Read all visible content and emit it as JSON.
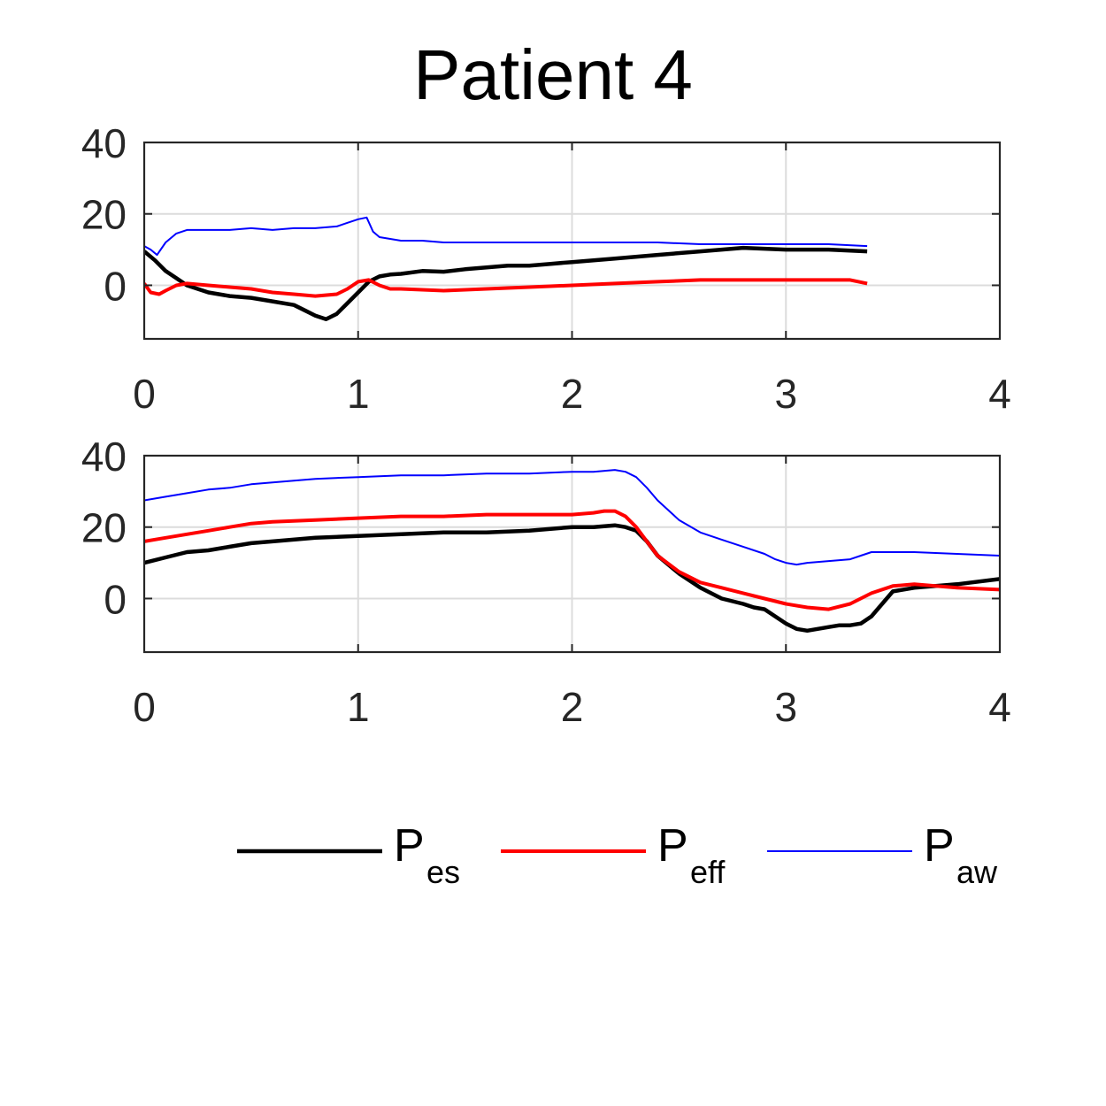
{
  "title": "Patient 4",
  "legend": [
    {
      "main": "P",
      "sub": "es",
      "color": "#000000"
    },
    {
      "main": "P",
      "sub": "eff",
      "color": "#ff0000"
    },
    {
      "main": "P",
      "sub": "aw",
      "color": "#0000ff"
    }
  ],
  "chart_data": [
    {
      "type": "line",
      "title": "",
      "xlabel": "",
      "ylabel": "",
      "xlim": [
        0,
        4
      ],
      "ylim": [
        -15,
        40
      ],
      "xticks": [
        0,
        1,
        2,
        3,
        4
      ],
      "yticks": [
        0,
        20,
        40
      ],
      "grid": true,
      "series": [
        {
          "color": "#000000",
          "x": [
            0,
            0.05,
            0.1,
            0.15,
            0.2,
            0.3,
            0.4,
            0.5,
            0.6,
            0.7,
            0.75,
            0.8,
            0.85,
            0.9,
            0.95,
            1.0,
            1.05,
            1.1,
            1.15,
            1.2,
            1.3,
            1.4,
            1.5,
            1.6,
            1.7,
            1.8,
            1.9,
            2.0,
            2.2,
            2.4,
            2.6,
            2.8,
            3.0,
            3.2,
            3.38
          ],
          "y": [
            9.5,
            7,
            4,
            2,
            0,
            -2,
            -3,
            -3.5,
            -4.5,
            -5.5,
            -7,
            -8.5,
            -9.5,
            -8,
            -5,
            -2,
            1,
            2.5,
            3,
            3.2,
            4,
            3.8,
            4.5,
            5,
            5.5,
            5.5,
            6,
            6.5,
            7.5,
            8.5,
            9.5,
            10.5,
            10,
            10,
            9.5
          ]
        },
        {
          "color": "#ff0000",
          "x": [
            0,
            0.03,
            0.07,
            0.1,
            0.15,
            0.2,
            0.3,
            0.4,
            0.5,
            0.6,
            0.7,
            0.8,
            0.9,
            0.95,
            1.0,
            1.05,
            1.1,
            1.15,
            1.2,
            1.4,
            1.6,
            1.8,
            2.0,
            2.2,
            2.4,
            2.6,
            2.8,
            3.0,
            3.2,
            3.3,
            3.38
          ],
          "y": [
            0.5,
            -2,
            -2.5,
            -1.5,
            0,
            0.5,
            0,
            -0.5,
            -1,
            -2,
            -2.5,
            -3,
            -2.5,
            -1,
            1,
            1.5,
            0,
            -1,
            -1,
            -1.5,
            -1,
            -0.5,
            0,
            0.5,
            1,
            1.5,
            1.5,
            1.5,
            1.5,
            1.5,
            0.5
          ]
        },
        {
          "color": "#0000ff",
          "x": [
            0,
            0.03,
            0.06,
            0.1,
            0.15,
            0.2,
            0.3,
            0.4,
            0.5,
            0.6,
            0.7,
            0.8,
            0.9,
            0.95,
            1.0,
            1.04,
            1.07,
            1.1,
            1.15,
            1.2,
            1.3,
            1.4,
            1.6,
            1.8,
            2.0,
            2.2,
            2.4,
            2.6,
            2.8,
            3.0,
            3.2,
            3.38
          ],
          "y": [
            11,
            10,
            8.5,
            12,
            14.5,
            15.5,
            15.5,
            15.5,
            16,
            15.5,
            16,
            16,
            16.5,
            17.5,
            18.5,
            19,
            15,
            13.5,
            13,
            12.5,
            12.5,
            12,
            12,
            12,
            12,
            12,
            12,
            11.5,
            11.5,
            11.5,
            11.5,
            11
          ]
        }
      ]
    },
    {
      "type": "line",
      "title": "",
      "xlabel": "",
      "ylabel": "",
      "xlim": [
        0,
        4
      ],
      "ylim": [
        -15,
        40
      ],
      "xticks": [
        0,
        1,
        2,
        3,
        4
      ],
      "yticks": [
        0,
        20,
        40
      ],
      "grid": true,
      "series": [
        {
          "color": "#000000",
          "x": [
            0,
            0.1,
            0.2,
            0.3,
            0.4,
            0.5,
            0.6,
            0.8,
            1.0,
            1.2,
            1.4,
            1.6,
            1.8,
            2.0,
            2.1,
            2.2,
            2.25,
            2.3,
            2.35,
            2.4,
            2.5,
            2.6,
            2.7,
            2.8,
            2.85,
            2.9,
            3.0,
            3.05,
            3.1,
            3.2,
            3.25,
            3.3,
            3.35,
            3.4,
            3.5,
            3.6,
            3.8,
            4.0
          ],
          "y": [
            10,
            11.5,
            13,
            13.5,
            14.5,
            15.5,
            16,
            17,
            17.5,
            18,
            18.5,
            18.5,
            19,
            20,
            20,
            20.5,
            20,
            19,
            16,
            12,
            7,
            3,
            0,
            -1.5,
            -2.5,
            -3,
            -7,
            -8.5,
            -9,
            -8,
            -7.5,
            -7.5,
            -7,
            -5,
            2,
            3,
            4,
            5.5
          ]
        },
        {
          "color": "#ff0000",
          "x": [
            0,
            0.1,
            0.2,
            0.3,
            0.4,
            0.5,
            0.6,
            0.8,
            1.0,
            1.2,
            1.4,
            1.6,
            1.8,
            2.0,
            2.1,
            2.15,
            2.2,
            2.25,
            2.3,
            2.35,
            2.4,
            2.5,
            2.6,
            2.7,
            2.8,
            2.9,
            3.0,
            3.1,
            3.2,
            3.3,
            3.4,
            3.5,
            3.6,
            3.8,
            4.0
          ],
          "y": [
            16,
            17,
            18,
            19,
            20,
            21,
            21.5,
            22,
            22.5,
            23,
            23,
            23.5,
            23.5,
            23.5,
            24,
            24.5,
            24.5,
            23,
            20,
            16,
            12,
            7.5,
            4.5,
            3,
            1.5,
            0,
            -1.5,
            -2.5,
            -3,
            -1.5,
            1.5,
            3.5,
            4,
            3,
            2.5
          ]
        },
        {
          "color": "#0000ff",
          "x": [
            0,
            0.1,
            0.2,
            0.3,
            0.4,
            0.5,
            0.6,
            0.8,
            1.0,
            1.2,
            1.4,
            1.6,
            1.8,
            2.0,
            2.1,
            2.2,
            2.25,
            2.3,
            2.35,
            2.4,
            2.5,
            2.6,
            2.7,
            2.8,
            2.9,
            2.95,
            3.0,
            3.05,
            3.1,
            3.2,
            3.3,
            3.35,
            3.4,
            3.5,
            3.6,
            3.8,
            4.0
          ],
          "y": [
            27.5,
            28.5,
            29.5,
            30.5,
            31,
            32,
            32.5,
            33.5,
            34,
            34.5,
            34.5,
            35,
            35,
            35.5,
            35.5,
            36,
            35.5,
            34,
            31,
            27.5,
            22,
            18.5,
            16.5,
            14.5,
            12.5,
            11,
            10,
            9.5,
            10,
            10.5,
            11,
            12,
            13,
            13,
            13,
            12.5,
            12
          ]
        }
      ]
    }
  ]
}
